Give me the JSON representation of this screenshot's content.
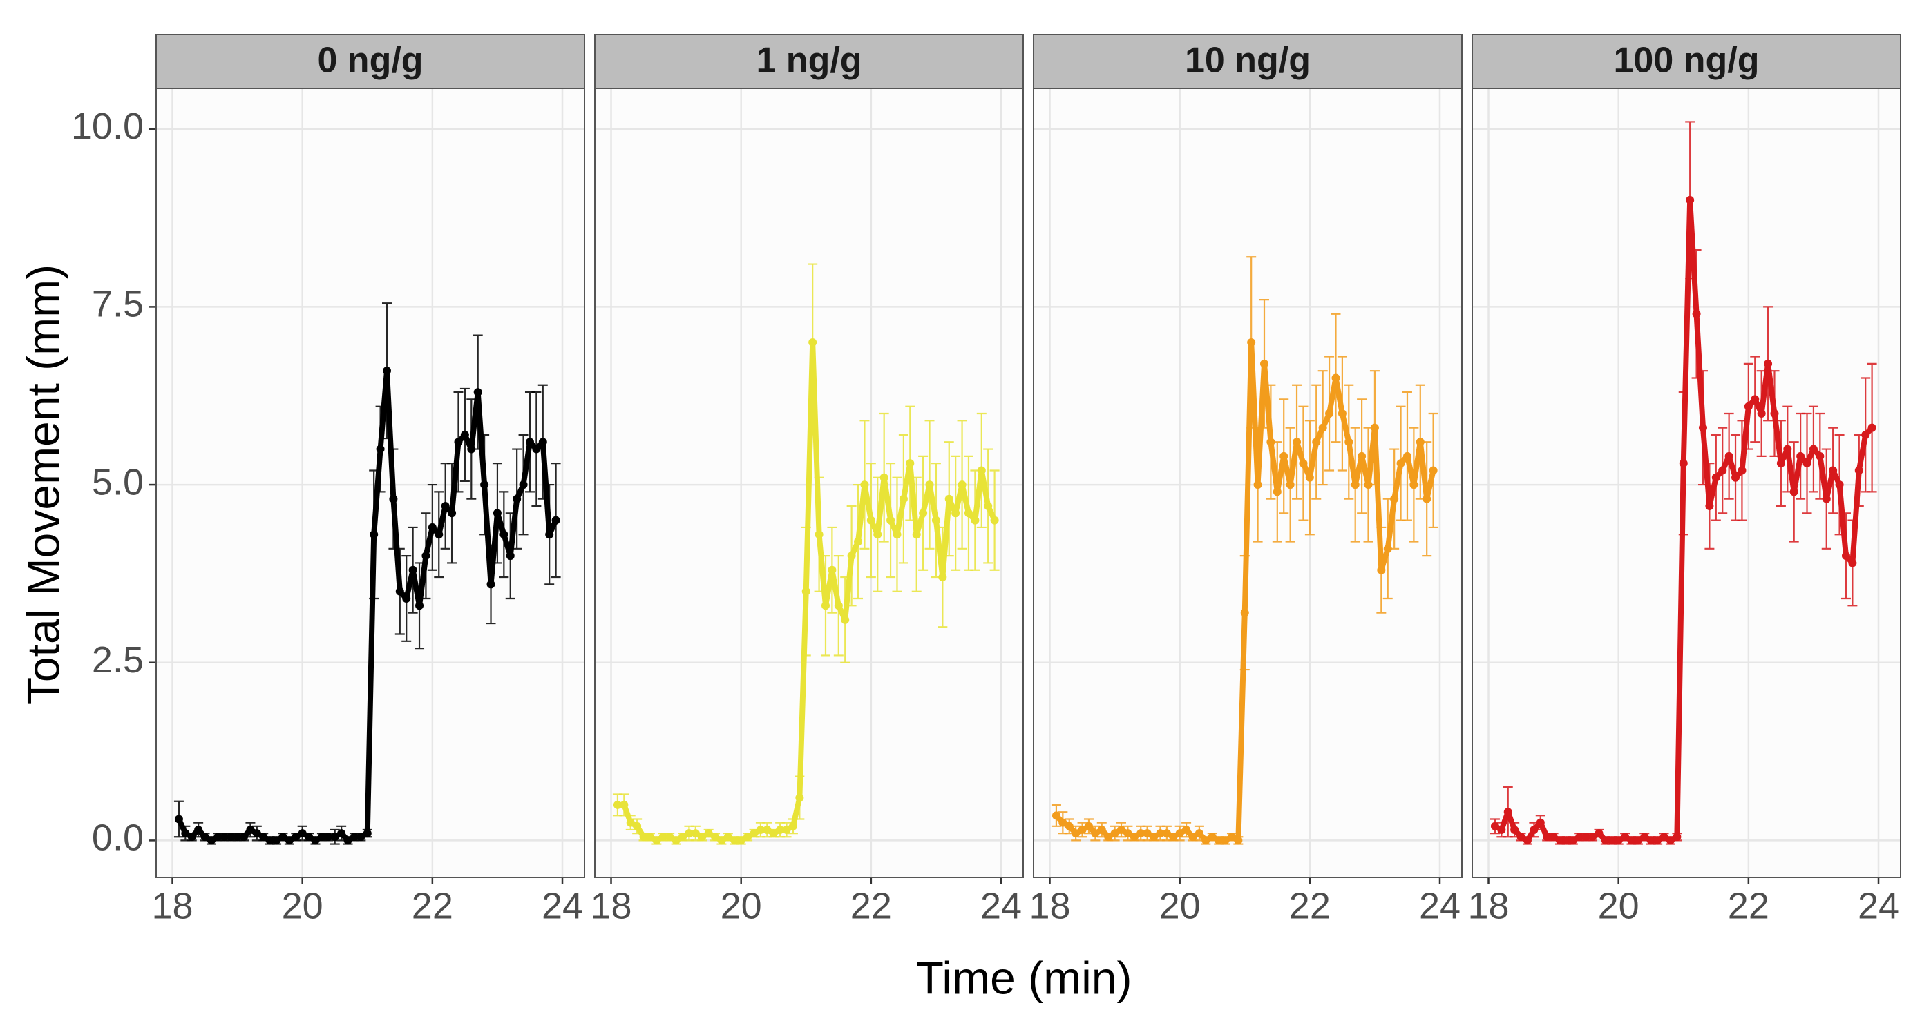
{
  "xlabel": "Time (min)",
  "ylabel": "Total Movement (mm)",
  "chart_data": [
    {
      "type": "line",
      "title": "0 ng/g",
      "color": "#000000",
      "x": [
        18.1,
        18.2,
        18.3,
        18.4,
        18.5,
        18.6,
        18.7,
        18.8,
        18.9,
        19,
        19.1,
        19.2,
        19.3,
        19.4,
        19.5,
        19.6,
        19.7,
        19.8,
        19.9,
        20,
        20.1,
        20.2,
        20.3,
        20.4,
        20.5,
        20.6,
        20.7,
        20.8,
        20.9,
        21,
        21.1,
        21.2,
        21.3,
        21.4,
        21.5,
        21.6,
        21.7,
        21.8,
        21.9,
        22,
        22.1,
        22.2,
        22.3,
        22.4,
        22.5,
        22.6,
        22.7,
        22.8,
        22.9,
        23,
        23.1,
        23.2,
        23.3,
        23.4,
        23.5,
        23.6,
        23.7,
        23.8,
        23.9
      ],
      "values": [
        0.3,
        0.1,
        0.05,
        0.15,
        0.05,
        0,
        0.05,
        0.05,
        0.05,
        0.05,
        0.05,
        0.15,
        0.1,
        0.05,
        0,
        0,
        0.05,
        0,
        0.05,
        0.1,
        0.05,
        0,
        0.05,
        0.05,
        0.05,
        0.1,
        0,
        0.05,
        0.05,
        0.1,
        4.3,
        5.5,
        6.6,
        4.8,
        3.5,
        3.4,
        3.8,
        3.3,
        4,
        4.4,
        4.3,
        4.7,
        4.6,
        5.6,
        5.7,
        5.5,
        6.3,
        5,
        3.6,
        4.6,
        4.3,
        4,
        4.8,
        5,
        5.6,
        5.5,
        5.6,
        4.3,
        4.5
      ],
      "errors": [
        0.25,
        0.1,
        0.05,
        0.1,
        0.05,
        0.05,
        0.05,
        0.05,
        0.05,
        0.05,
        0.05,
        0.1,
        0.1,
        0.05,
        0.05,
        0.05,
        0.05,
        0.05,
        0.05,
        0.1,
        0.05,
        0.05,
        0.05,
        0.05,
        0.1,
        0.1,
        0.05,
        0.05,
        0.05,
        0.05,
        0.9,
        0.6,
        0.95,
        0.7,
        0.6,
        0.6,
        0.6,
        0.6,
        0.6,
        0.6,
        0.6,
        0.6,
        0.7,
        0.7,
        0.65,
        0.7,
        0.8,
        0.7,
        0.55,
        0.7,
        0.6,
        0.6,
        0.7,
        0.7,
        0.7,
        0.8,
        0.8,
        0.7,
        0.8
      ],
      "xlim": [
        17.75,
        24.34
      ],
      "xticks": [
        18,
        20,
        22,
        24
      ],
      "ylim": [
        -0.52,
        10.57
      ],
      "yticks": [
        {
          "value": 0,
          "label": "0.0"
        },
        {
          "value": 2.5,
          "label": "2.5"
        },
        {
          "value": 5,
          "label": "5.0"
        },
        {
          "value": 7.5,
          "label": "7.5"
        },
        {
          "value": 10,
          "label": "10.0"
        }
      ],
      "grid": true
    },
    {
      "type": "line",
      "title": "1 ng/g",
      "color": "#e8e337",
      "x": [
        18.1,
        18.2,
        18.3,
        18.4,
        18.5,
        18.6,
        18.7,
        18.8,
        18.9,
        19,
        19.1,
        19.2,
        19.3,
        19.4,
        19.5,
        19.6,
        19.7,
        19.8,
        19.9,
        20,
        20.1,
        20.2,
        20.3,
        20.4,
        20.5,
        20.6,
        20.7,
        20.8,
        20.9,
        21,
        21.1,
        21.2,
        21.3,
        21.4,
        21.5,
        21.6,
        21.7,
        21.8,
        21.9,
        22,
        22.1,
        22.2,
        22.3,
        22.4,
        22.5,
        22.6,
        22.7,
        22.8,
        22.9,
        23,
        23.1,
        23.2,
        23.3,
        23.4,
        23.5,
        23.6,
        23.7,
        23.8,
        23.9
      ],
      "values": [
        0.5,
        0.5,
        0.25,
        0.2,
        0.05,
        0.05,
        0,
        0.05,
        0.05,
        0,
        0.05,
        0.1,
        0.1,
        0.05,
        0.1,
        0.05,
        0,
        0.05,
        0,
        0,
        0.05,
        0.1,
        0.15,
        0.15,
        0.1,
        0.15,
        0.15,
        0.2,
        0.6,
        3.5,
        7,
        4.3,
        3.3,
        3.8,
        3.3,
        3.1,
        4,
        4.2,
        5,
        4.5,
        4.3,
        5.1,
        4.5,
        4.3,
        4.8,
        5.3,
        4.3,
        4.6,
        5,
        4.5,
        3.7,
        4.8,
        4.6,
        5,
        4.6,
        4.5,
        5.2,
        4.7,
        4.5
      ],
      "errors": [
        0.15,
        0.15,
        0.1,
        0.1,
        0.05,
        0.05,
        0.05,
        0.05,
        0.05,
        0.05,
        0.05,
        0.1,
        0.1,
        0.05,
        0.05,
        0.05,
        0.05,
        0.05,
        0.05,
        0.05,
        0.05,
        0.05,
        0.1,
        0.1,
        0.05,
        0.1,
        0.1,
        0.1,
        0.3,
        0.9,
        1.1,
        0.8,
        0.7,
        0.6,
        0.7,
        0.6,
        0.7,
        0.8,
        0.9,
        0.8,
        0.8,
        0.9,
        0.8,
        0.8,
        0.9,
        0.8,
        0.8,
        0.8,
        0.9,
        0.8,
        0.7,
        0.8,
        0.8,
        0.9,
        0.8,
        0.7,
        0.8,
        0.8,
        0.7
      ],
      "xlim": [
        17.75,
        24.34
      ],
      "xticks": [
        18,
        20,
        22,
        24
      ],
      "ylim": [
        -0.52,
        10.57
      ],
      "yticks": [
        {
          "value": 0,
          "label": "0.0"
        },
        {
          "value": 2.5,
          "label": "2.5"
        },
        {
          "value": 5,
          "label": "5.0"
        },
        {
          "value": 7.5,
          "label": "7.5"
        },
        {
          "value": 10,
          "label": "10.0"
        }
      ],
      "grid": true
    },
    {
      "type": "line",
      "title": "10 ng/g",
      "color": "#f29c1c",
      "x": [
        18.1,
        18.2,
        18.3,
        18.4,
        18.5,
        18.6,
        18.7,
        18.8,
        18.9,
        19,
        19.1,
        19.2,
        19.3,
        19.4,
        19.5,
        19.6,
        19.7,
        19.8,
        19.9,
        20,
        20.1,
        20.2,
        20.3,
        20.4,
        20.5,
        20.6,
        20.7,
        20.8,
        20.9,
        21,
        21.1,
        21.2,
        21.3,
        21.4,
        21.5,
        21.6,
        21.7,
        21.8,
        21.9,
        22,
        22.1,
        22.2,
        22.3,
        22.4,
        22.5,
        22.6,
        22.7,
        22.8,
        22.9,
        23,
        23.1,
        23.2,
        23.3,
        23.4,
        23.5,
        23.6,
        23.7,
        23.8,
        23.9
      ],
      "values": [
        0.35,
        0.25,
        0.2,
        0.1,
        0.15,
        0.2,
        0.1,
        0.15,
        0.05,
        0.1,
        0.15,
        0.1,
        0.05,
        0.1,
        0.1,
        0.05,
        0.1,
        0.1,
        0.05,
        0.1,
        0.15,
        0.05,
        0.1,
        0,
        0.05,
        0,
        0,
        0.05,
        0,
        3.2,
        7,
        5,
        6.7,
        5.6,
        4.9,
        5.4,
        5,
        5.6,
        5.3,
        5.1,
        5.6,
        5.8,
        6,
        6.5,
        6,
        5.6,
        5,
        5.4,
        5,
        5.8,
        3.8,
        4.1,
        4.8,
        5.3,
        5.4,
        5,
        5.6,
        4.8,
        5.2
      ],
      "errors": [
        0.15,
        0.15,
        0.1,
        0.1,
        0.1,
        0.1,
        0.1,
        0.1,
        0.05,
        0.1,
        0.1,
        0.1,
        0.05,
        0.1,
        0.1,
        0.05,
        0.1,
        0.1,
        0.05,
        0.1,
        0.1,
        0.05,
        0.1,
        0.05,
        0.05,
        0.05,
        0.05,
        0.05,
        0.05,
        0.8,
        1.2,
        0.8,
        0.9,
        0.8,
        0.7,
        0.8,
        0.8,
        0.8,
        0.8,
        0.8,
        0.8,
        0.8,
        0.8,
        0.9,
        0.8,
        0.8,
        0.8,
        0.8,
        0.8,
        0.8,
        0.6,
        0.7,
        0.7,
        0.8,
        0.9,
        0.8,
        0.8,
        0.8,
        0.8
      ],
      "xlim": [
        17.75,
        24.34
      ],
      "xticks": [
        18,
        20,
        22,
        24
      ],
      "ylim": [
        -0.52,
        10.57
      ],
      "yticks": [
        {
          "value": 0,
          "label": "0.0"
        },
        {
          "value": 2.5,
          "label": "2.5"
        },
        {
          "value": 5,
          "label": "5.0"
        },
        {
          "value": 7.5,
          "label": "7.5"
        },
        {
          "value": 10,
          "label": "10.0"
        }
      ],
      "grid": true
    },
    {
      "type": "line",
      "title": "100 ng/g",
      "color": "#d7191c",
      "x": [
        18.1,
        18.2,
        18.3,
        18.4,
        18.5,
        18.6,
        18.7,
        18.8,
        18.9,
        19,
        19.1,
        19.2,
        19.3,
        19.4,
        19.5,
        19.6,
        19.7,
        19.8,
        19.9,
        20,
        20.1,
        20.2,
        20.3,
        20.4,
        20.5,
        20.6,
        20.7,
        20.8,
        20.9,
        21,
        21.1,
        21.2,
        21.3,
        21.4,
        21.5,
        21.6,
        21.7,
        21.8,
        21.9,
        22,
        22.1,
        22.2,
        22.3,
        22.4,
        22.5,
        22.6,
        22.7,
        22.8,
        22.9,
        23,
        23.1,
        23.2,
        23.3,
        23.4,
        23.5,
        23.6,
        23.7,
        23.8,
        23.9
      ],
      "values": [
        0.2,
        0.15,
        0.4,
        0.15,
        0.05,
        0,
        0.15,
        0.25,
        0.05,
        0.05,
        0,
        0,
        0,
        0.05,
        0.05,
        0.05,
        0.1,
        0,
        0,
        0,
        0.05,
        0,
        0,
        0.05,
        0,
        0,
        0.05,
        0,
        0.05,
        5.3,
        9,
        7.4,
        5.8,
        4.7,
        5.1,
        5.2,
        5.4,
        5.1,
        5.2,
        6.1,
        6.2,
        6,
        6.7,
        6,
        5.3,
        5.5,
        4.9,
        5.4,
        5.3,
        5.5,
        5.4,
        4.8,
        5.2,
        5,
        4,
        3.9,
        5.2,
        5.7,
        5.8
      ],
      "errors": [
        0.1,
        0.1,
        0.35,
        0.1,
        0.05,
        0.05,
        0.1,
        0.1,
        0.05,
        0.05,
        0.05,
        0.05,
        0.05,
        0.05,
        0.05,
        0.05,
        0.05,
        0.05,
        0.05,
        0.05,
        0.05,
        0.05,
        0.05,
        0.05,
        0.05,
        0.05,
        0.05,
        0.05,
        0.05,
        1,
        1.1,
        0.9,
        0.8,
        0.6,
        0.6,
        0.6,
        0.6,
        0.6,
        0.7,
        0.6,
        0.6,
        0.6,
        0.8,
        0.6,
        0.6,
        0.6,
        0.7,
        0.6,
        0.7,
        0.6,
        0.6,
        0.7,
        0.6,
        0.7,
        0.6,
        0.6,
        0.5,
        0.8,
        0.9
      ],
      "xlim": [
        17.75,
        24.34
      ],
      "xticks": [
        18,
        20,
        22,
        24
      ],
      "ylim": [
        -0.52,
        10.57
      ],
      "yticks": [
        {
          "value": 0,
          "label": "0.0"
        },
        {
          "value": 2.5,
          "label": "2.5"
        },
        {
          "value": 5,
          "label": "5.0"
        },
        {
          "value": 7.5,
          "label": "7.5"
        },
        {
          "value": 10,
          "label": "10.0"
        }
      ],
      "grid": true
    }
  ]
}
